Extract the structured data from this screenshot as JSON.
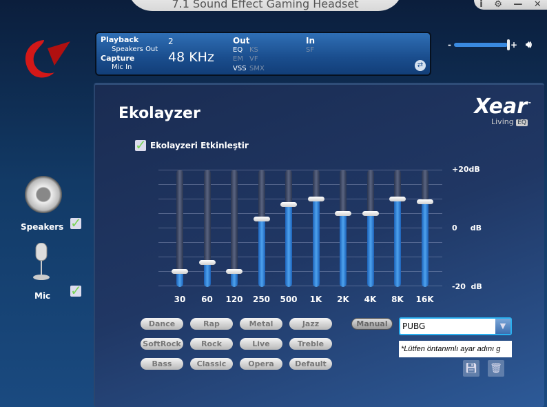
{
  "window": {
    "title": "7.1 Sound Effect Gaming Headset",
    "buttons": [
      "i",
      "⚙",
      "—",
      "✕"
    ]
  },
  "info": {
    "playback_label": "Playback",
    "playback_device": "Speakers Out",
    "capture_label": "Capture",
    "capture_device": "Mic In",
    "channels": "2",
    "sample_rate": "48 KHz",
    "out_label": "Out",
    "in_label": "In",
    "eq": "EQ",
    "ks": "KS",
    "em": "EM",
    "vf": "VF",
    "vss": "VSS",
    "smx": "SMX",
    "sf": "SF"
  },
  "volume": {
    "minus": "-",
    "plus": "+",
    "level_percent": 100
  },
  "sidebar": {
    "speakers": "Speakers",
    "mic": "Mic",
    "speakers_checked": true,
    "mic_checked": true
  },
  "panel": {
    "title": "Ekolayzer",
    "brand": "Xear",
    "brand_tm": "™",
    "brand_sub": "Living",
    "brand_badge": "EQ",
    "enable_label": "Ekolayzeri Etkinleştir",
    "enabled": true
  },
  "chart_data": {
    "type": "bar",
    "title": "",
    "categories": [
      "30",
      "60",
      "120",
      "250",
      "500",
      "1K",
      "2K",
      "4K",
      "8K",
      "16K"
    ],
    "values": [
      -15,
      -12,
      -15,
      3,
      8,
      10,
      5,
      5,
      10,
      9
    ],
    "ylim": [
      -20,
      20
    ],
    "yticks": [
      "+20dB",
      "0     dB",
      "-20  dB"
    ],
    "grid": true
  },
  "presets": [
    "Dance",
    "Rap",
    "Metal",
    "Jazz",
    "SoftRock",
    "Rock",
    "Live",
    "Treble",
    "Bass",
    "Classic",
    "Opera",
    "Default"
  ],
  "manual_label": "Manual",
  "preset_select": {
    "value": "PUBG"
  },
  "hint": "*Lütfen öntanımlı ayar adını g",
  "colors": {
    "accent": "#3a8ae0",
    "check": "#7cd35a"
  }
}
